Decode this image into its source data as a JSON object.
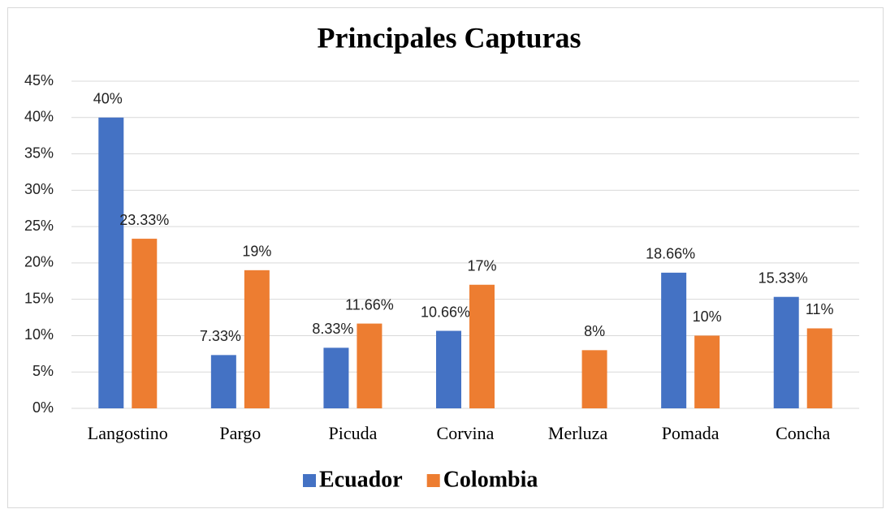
{
  "chart_data": {
    "type": "bar",
    "title": "Principales Capturas",
    "categories": [
      "Langostino",
      "Pargo",
      "Picuda",
      "Corvina",
      "Merluza",
      "Pomada",
      "Concha"
    ],
    "series": [
      {
        "name": "Ecuador",
        "color": "#4472c4",
        "values": [
          40,
          7.33,
          8.33,
          10.66,
          null,
          18.66,
          15.33
        ],
        "value_labels": [
          "40%",
          "7.33%",
          "8.33%",
          "10.66%",
          null,
          "18.66%",
          "15.33%"
        ]
      },
      {
        "name": "Colombia",
        "color": "#ed7d31",
        "values": [
          23.33,
          19,
          11.66,
          17,
          8,
          10,
          11
        ],
        "value_labels": [
          "23.33%",
          "19%",
          "11.66%",
          "17%",
          "8%",
          "10%",
          "11%"
        ]
      }
    ],
    "ylim": [
      0,
      45
    ],
    "yticks": [
      {
        "value": 0,
        "label": "0%"
      },
      {
        "value": 5,
        "label": "5%"
      },
      {
        "value": 10,
        "label": "10%"
      },
      {
        "value": 15,
        "label": "15%"
      },
      {
        "value": 20,
        "label": "20%"
      },
      {
        "value": 25,
        "label": "25%"
      },
      {
        "value": 30,
        "label": "30%"
      },
      {
        "value": 35,
        "label": "35%"
      },
      {
        "value": 40,
        "label": "40%"
      },
      {
        "value": 45,
        "label": "45%"
      }
    ],
    "grid": true,
    "legend": "bottom"
  }
}
